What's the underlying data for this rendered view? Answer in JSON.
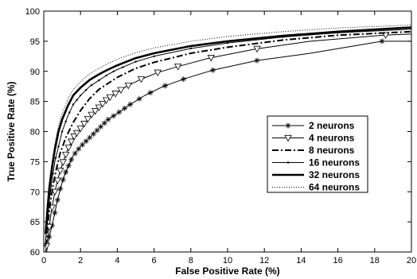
{
  "chart_data": {
    "type": "line",
    "title": "",
    "xlabel": "False Positive Rate (%)",
    "ylabel": "True Positive Rate (%)",
    "xlim": [
      0,
      20
    ],
    "ylim": [
      60,
      100
    ],
    "xticks": [
      "0",
      "2",
      "4",
      "6",
      "8",
      "10",
      "12",
      "14",
      "16",
      "18",
      "20"
    ],
    "yticks": [
      "60",
      "65",
      "70",
      "75",
      "80",
      "85",
      "90",
      "95",
      "100"
    ],
    "grid": false,
    "legend_position": "right",
    "series": [
      {
        "name": "2 neurons",
        "line_style": "solid",
        "line_weight": "thin",
        "marker": "asterisk",
        "points": [
          [
            0.15,
            60
          ],
          [
            0.3,
            62.5
          ],
          [
            0.5,
            65
          ],
          [
            0.7,
            68
          ],
          [
            0.9,
            70.5
          ],
          [
            1.1,
            72.5
          ],
          [
            1.3,
            74
          ],
          [
            1.6,
            76
          ],
          [
            2.0,
            77.5
          ],
          [
            2.5,
            79
          ],
          [
            3.0,
            80.5
          ],
          [
            3.5,
            82
          ],
          [
            4.0,
            83
          ],
          [
            4.7,
            84.5
          ],
          [
            5.5,
            86
          ],
          [
            6.5,
            87.5
          ],
          [
            7.7,
            88.8
          ],
          [
            9.2,
            90.2
          ],
          [
            11.6,
            91.8
          ],
          [
            14.5,
            93
          ],
          [
            18.4,
            95
          ],
          [
            20,
            95
          ]
        ],
        "marker_x": [
          0.3,
          0.45,
          0.6,
          0.75,
          0.9,
          1.05,
          1.2,
          1.35,
          1.5,
          1.7,
          1.9,
          2.1,
          2.3,
          2.5,
          2.7,
          2.9,
          3.1,
          3.3,
          3.5,
          3.8,
          4.1,
          4.4,
          4.7,
          5.2,
          5.8,
          6.6,
          7.6,
          9.2,
          11.6,
          18.4
        ]
      },
      {
        "name": "4 neurons",
        "line_style": "solid",
        "line_weight": "thin",
        "marker": "triangle-down",
        "points": [
          [
            0.1,
            60
          ],
          [
            0.25,
            63
          ],
          [
            0.4,
            66.5
          ],
          [
            0.6,
            70
          ],
          [
            0.8,
            72.5
          ],
          [
            1.0,
            74.5
          ],
          [
            1.3,
            77
          ],
          [
            1.6,
            79
          ],
          [
            2.0,
            80.5
          ],
          [
            2.5,
            82.5
          ],
          [
            3.0,
            84
          ],
          [
            3.5,
            85.5
          ],
          [
            4.0,
            86.5
          ],
          [
            4.5,
            87.5
          ],
          [
            5.3,
            88.7
          ],
          [
            6.2,
            89.8
          ],
          [
            7.3,
            90.8
          ],
          [
            9.0,
            92.2
          ],
          [
            11.5,
            93.7
          ],
          [
            14.5,
            95
          ],
          [
            18.5,
            96
          ],
          [
            20,
            96.2
          ]
        ],
        "marker_x": [
          0.15,
          0.3,
          0.45,
          0.6,
          0.75,
          0.9,
          1.05,
          1.2,
          1.35,
          1.5,
          1.65,
          1.8,
          2.0,
          2.2,
          2.4,
          2.6,
          2.8,
          3.0,
          3.2,
          3.4,
          3.6,
          3.9,
          4.2,
          4.6,
          5.3,
          6.2,
          7.3,
          9.1,
          11.6,
          18.6
        ]
      },
      {
        "name": "8 neurons",
        "line_style": "dash-dot",
        "line_weight": "thick",
        "marker": "none",
        "points": [
          [
            0.1,
            61
          ],
          [
            0.2,
            64
          ],
          [
            0.35,
            68
          ],
          [
            0.5,
            71
          ],
          [
            0.7,
            74
          ],
          [
            0.9,
            76.5
          ],
          [
            1.2,
            79
          ],
          [
            1.6,
            81.5
          ],
          [
            2.0,
            83.5
          ],
          [
            2.5,
            85.5
          ],
          [
            3.0,
            87
          ],
          [
            3.5,
            88
          ],
          [
            4.0,
            89
          ],
          [
            5.0,
            90.5
          ],
          [
            6.0,
            91.5
          ],
          [
            8.0,
            93
          ],
          [
            10.0,
            94
          ],
          [
            13.0,
            95.2
          ],
          [
            16.0,
            96
          ],
          [
            20,
            96.6
          ]
        ],
        "marker_x": []
      },
      {
        "name": "16 neurons",
        "line_style": "solid",
        "line_weight": "thin",
        "marker": "dot",
        "points": [
          [
            0.1,
            62
          ],
          [
            0.2,
            65
          ],
          [
            0.3,
            68.5
          ],
          [
            0.45,
            72
          ],
          [
            0.6,
            75
          ],
          [
            0.8,
            77.5
          ],
          [
            1.0,
            80
          ],
          [
            1.3,
            82.5
          ],
          [
            1.6,
            84.5
          ],
          [
            2.0,
            86
          ],
          [
            2.5,
            87.5
          ],
          [
            3.0,
            88.5
          ],
          [
            3.5,
            89.5
          ],
          [
            4.0,
            90.3
          ],
          [
            5.0,
            91.6
          ],
          [
            6.0,
            92.5
          ],
          [
            8.0,
            93.8
          ],
          [
            10.0,
            94.7
          ],
          [
            13.0,
            95.7
          ],
          [
            16.0,
            96.4
          ],
          [
            20,
            97
          ]
        ],
        "marker_x": [
          0.15,
          0.25,
          0.35,
          0.5,
          0.65,
          0.8,
          1.0,
          1.2,
          1.4,
          1.6,
          1.8,
          2.0,
          2.3,
          2.6,
          3.0,
          3.4,
          3.8,
          4.3,
          5.0,
          6.0,
          8.0,
          10.0,
          13.0,
          16.0
        ]
      },
      {
        "name": "32 neurons",
        "line_style": "solid",
        "line_weight": "heavy",
        "marker": "none",
        "points": [
          [
            0.1,
            63
          ],
          [
            0.2,
            67
          ],
          [
            0.3,
            70.5
          ],
          [
            0.45,
            74
          ],
          [
            0.6,
            77
          ],
          [
            0.8,
            80
          ],
          [
            1.0,
            82
          ],
          [
            1.3,
            84.2
          ],
          [
            1.6,
            86
          ],
          [
            2.0,
            87.3
          ],
          [
            2.5,
            88.6
          ],
          [
            3.0,
            89.5
          ],
          [
            3.5,
            90.3
          ],
          [
            4.0,
            91
          ],
          [
            5.0,
            92.2
          ],
          [
            6.0,
            93
          ],
          [
            8.0,
            94.2
          ],
          [
            10.0,
            95
          ],
          [
            13.0,
            95.9
          ],
          [
            16.0,
            96.6
          ],
          [
            20,
            97.3
          ]
        ],
        "marker_x": []
      },
      {
        "name": "64 neurons",
        "line_style": "dotted",
        "line_weight": "thin",
        "marker": "none",
        "points": [
          [
            0.1,
            64
          ],
          [
            0.2,
            68
          ],
          [
            0.3,
            71.5
          ],
          [
            0.45,
            75
          ],
          [
            0.6,
            78
          ],
          [
            0.8,
            81
          ],
          [
            1.0,
            83
          ],
          [
            1.3,
            85.3
          ],
          [
            1.6,
            87
          ],
          [
            2.0,
            88.3
          ],
          [
            2.5,
            89.6
          ],
          [
            3.0,
            90.5
          ],
          [
            3.5,
            91.3
          ],
          [
            4.0,
            92
          ],
          [
            5.0,
            93.1
          ],
          [
            6.0,
            93.9
          ],
          [
            8.0,
            95
          ],
          [
            10.0,
            95.8
          ],
          [
            13.0,
            96.6
          ],
          [
            16.0,
            97.2
          ],
          [
            20,
            97.7
          ]
        ],
        "marker_x": []
      }
    ]
  }
}
